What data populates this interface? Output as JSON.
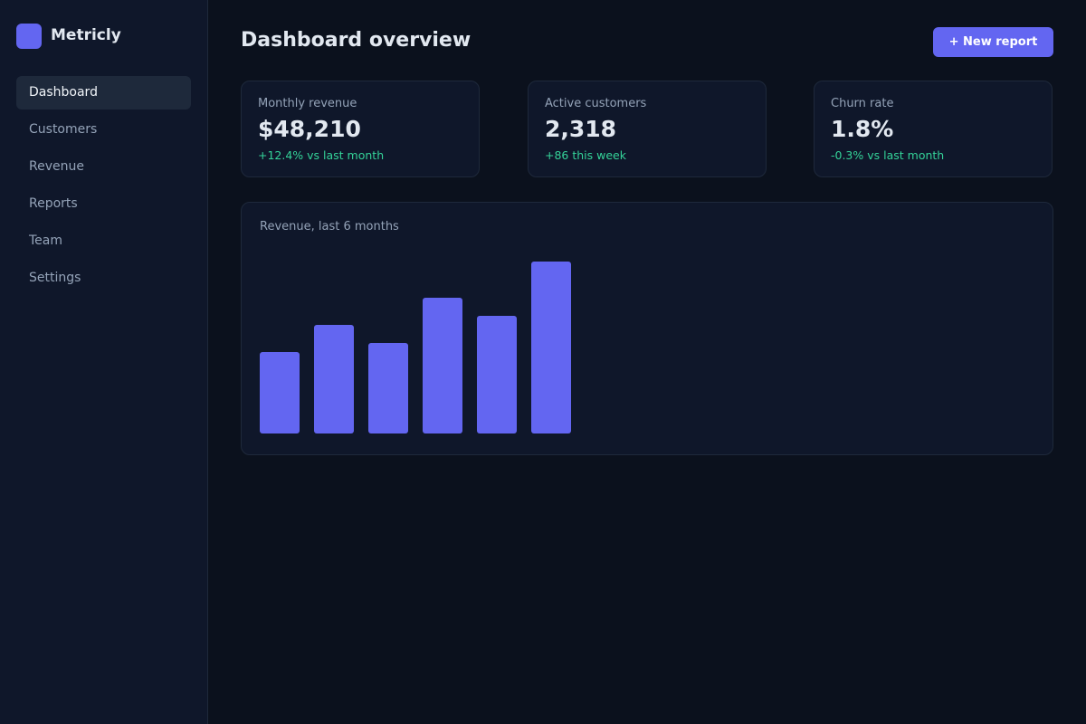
{
  "app": {
    "name": "Metricly"
  },
  "nav": [
    {
      "label": "Dashboard",
      "active": true
    },
    {
      "label": "Customers"
    },
    {
      "label": "Revenue"
    },
    {
      "label": "Reports"
    },
    {
      "label": "Team"
    },
    {
      "label": "Settings"
    }
  ],
  "header": {
    "title": "Dashboard overview",
    "button": "+ New report"
  },
  "cards": [
    {
      "label": "Monthly revenue",
      "value": "$48,210",
      "delta": "+12.4% vs last month"
    },
    {
      "label": "Active customers",
      "value": "2,318",
      "delta": "+86 this week"
    },
    {
      "label": "Churn rate",
      "value": "1.8%",
      "delta": "-0.3% vs last month"
    }
  ],
  "chart_data": {
    "type": "bar",
    "title": "Revenue, last 6 months",
    "values": [
      90,
      120,
      100,
      150,
      130,
      190
    ],
    "color": "#6366f1",
    "ylim": [
      0,
      200
    ]
  }
}
